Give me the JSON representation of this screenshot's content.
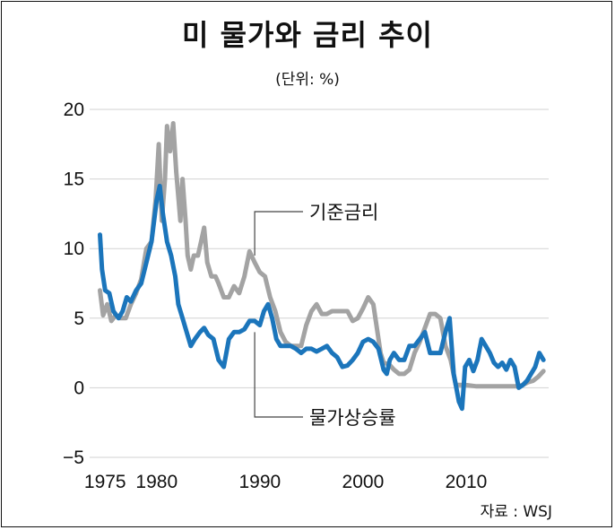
{
  "chart_data": {
    "type": "line",
    "title": "미 물가와 금리 추이",
    "subtitle": "(단위: %)",
    "source": "자료 : WSJ",
    "xlabel": "",
    "ylabel": "",
    "xlim": [
      1973.5,
      2018
    ],
    "ylim": [
      -5,
      20
    ],
    "x_ticks": [
      "1975",
      "1980",
      "1990",
      "2000",
      "2010"
    ],
    "y_ticks": [
      "20",
      "15",
      "10",
      "5",
      "0",
      "−5"
    ],
    "grid": true,
    "series": [
      {
        "name": "기준금리",
        "color": "#a3a3a3",
        "points": [
          [
            1974.5,
            7.0
          ],
          [
            1974.8,
            5.2
          ],
          [
            1975.2,
            6.0
          ],
          [
            1975.6,
            4.8
          ],
          [
            1976.0,
            5.2
          ],
          [
            1976.5,
            5.0
          ],
          [
            1977.0,
            5.0
          ],
          [
            1977.5,
            6.0
          ],
          [
            1978.0,
            6.8
          ],
          [
            1978.5,
            7.8
          ],
          [
            1979.0,
            10.0
          ],
          [
            1979.5,
            10.5
          ],
          [
            1979.9,
            13.5
          ],
          [
            1980.2,
            17.5
          ],
          [
            1980.5,
            12.0
          ],
          [
            1980.8,
            15.0
          ],
          [
            1981.0,
            18.8
          ],
          [
            1981.3,
            17.0
          ],
          [
            1981.6,
            19.0
          ],
          [
            1981.9,
            15.5
          ],
          [
            1982.3,
            12.0
          ],
          [
            1982.5,
            15.0
          ],
          [
            1982.8,
            12.0
          ],
          [
            1983.0,
            9.5
          ],
          [
            1983.3,
            8.5
          ],
          [
            1983.6,
            9.5
          ],
          [
            1984.0,
            9.5
          ],
          [
            1984.3,
            10.5
          ],
          [
            1984.6,
            11.5
          ],
          [
            1984.9,
            9.0
          ],
          [
            1985.3,
            8.0
          ],
          [
            1985.7,
            8.0
          ],
          [
            1986.0,
            7.5
          ],
          [
            1986.5,
            6.5
          ],
          [
            1987.0,
            6.5
          ],
          [
            1987.5,
            7.3
          ],
          [
            1988.0,
            6.8
          ],
          [
            1988.5,
            8.0
          ],
          [
            1989.0,
            9.8
          ],
          [
            1989.5,
            9.0
          ],
          [
            1990.0,
            8.3
          ],
          [
            1990.5,
            8.0
          ],
          [
            1991.0,
            6.5
          ],
          [
            1991.5,
            5.5
          ],
          [
            1992.0,
            4.0
          ],
          [
            1992.5,
            3.3
          ],
          [
            1993.0,
            3.0
          ],
          [
            1993.5,
            3.0
          ],
          [
            1994.0,
            3.0
          ],
          [
            1994.5,
            4.5
          ],
          [
            1995.0,
            5.5
          ],
          [
            1995.5,
            6.0
          ],
          [
            1996.0,
            5.3
          ],
          [
            1996.5,
            5.3
          ],
          [
            1997.0,
            5.5
          ],
          [
            1997.5,
            5.5
          ],
          [
            1998.0,
            5.5
          ],
          [
            1998.5,
            5.5
          ],
          [
            1999.0,
            4.8
          ],
          [
            1999.5,
            5.0
          ],
          [
            2000.0,
            5.7
          ],
          [
            2000.5,
            6.5
          ],
          [
            2001.0,
            6.0
          ],
          [
            2001.3,
            4.5
          ],
          [
            2001.7,
            2.5
          ],
          [
            2002.0,
            1.8
          ],
          [
            2002.5,
            1.7
          ],
          [
            2003.0,
            1.3
          ],
          [
            2003.5,
            1.0
          ],
          [
            2004.0,
            1.0
          ],
          [
            2004.5,
            1.3
          ],
          [
            2005.0,
            2.5
          ],
          [
            2005.5,
            3.3
          ],
          [
            2006.0,
            4.3
          ],
          [
            2006.5,
            5.3
          ],
          [
            2007.0,
            5.3
          ],
          [
            2007.5,
            5.0
          ],
          [
            2008.0,
            3.0
          ],
          [
            2008.5,
            2.0
          ],
          [
            2009.0,
            0.2
          ],
          [
            2010.0,
            0.2
          ],
          [
            2011.0,
            0.1
          ],
          [
            2012.0,
            0.1
          ],
          [
            2013.0,
            0.1
          ],
          [
            2014.0,
            0.1
          ],
          [
            2015.0,
            0.1
          ],
          [
            2015.5,
            0.2
          ],
          [
            2016.0,
            0.4
          ],
          [
            2016.5,
            0.5
          ],
          [
            2017.0,
            0.8
          ],
          [
            2017.5,
            1.2
          ]
        ]
      },
      {
        "name": "물가상승률",
        "color": "#1b75bb",
        "points": [
          [
            1974.5,
            11.0
          ],
          [
            1974.7,
            8.5
          ],
          [
            1975.0,
            7.0
          ],
          [
            1975.4,
            6.8
          ],
          [
            1975.8,
            5.5
          ],
          [
            1976.3,
            5.0
          ],
          [
            1976.7,
            5.5
          ],
          [
            1977.1,
            6.5
          ],
          [
            1977.5,
            6.2
          ],
          [
            1978.0,
            7.0
          ],
          [
            1978.5,
            7.5
          ],
          [
            1979.0,
            9.0
          ],
          [
            1979.5,
            10.5
          ],
          [
            1980.0,
            13.5
          ],
          [
            1980.3,
            14.5
          ],
          [
            1980.6,
            12.5
          ],
          [
            1981.0,
            10.5
          ],
          [
            1981.4,
            9.5
          ],
          [
            1981.8,
            8.0
          ],
          [
            1982.1,
            6.0
          ],
          [
            1982.5,
            5.0
          ],
          [
            1982.9,
            4.0
          ],
          [
            1983.3,
            3.0
          ],
          [
            1983.7,
            3.5
          ],
          [
            1984.2,
            4.0
          ],
          [
            1984.6,
            4.3
          ],
          [
            1985.0,
            3.8
          ],
          [
            1985.5,
            3.5
          ],
          [
            1986.0,
            2.0
          ],
          [
            1986.5,
            1.5
          ],
          [
            1987.0,
            3.5
          ],
          [
            1987.5,
            4.0
          ],
          [
            1988.0,
            4.0
          ],
          [
            1988.5,
            4.2
          ],
          [
            1989.0,
            4.8
          ],
          [
            1989.5,
            4.8
          ],
          [
            1990.0,
            4.5
          ],
          [
            1990.4,
            5.5
          ],
          [
            1990.8,
            6.0
          ],
          [
            1991.2,
            5.0
          ],
          [
            1991.6,
            3.5
          ],
          [
            1992.0,
            3.0
          ],
          [
            1992.5,
            3.0
          ],
          [
            1993.0,
            3.0
          ],
          [
            1993.5,
            2.8
          ],
          [
            1994.0,
            2.5
          ],
          [
            1994.5,
            2.8
          ],
          [
            1995.0,
            2.8
          ],
          [
            1995.5,
            2.6
          ],
          [
            1996.0,
            2.8
          ],
          [
            1996.5,
            3.0
          ],
          [
            1997.0,
            2.5
          ],
          [
            1997.5,
            2.2
          ],
          [
            1998.0,
            1.5
          ],
          [
            1998.5,
            1.6
          ],
          [
            1999.0,
            2.0
          ],
          [
            1999.5,
            2.5
          ],
          [
            2000.0,
            3.3
          ],
          [
            2000.5,
            3.5
          ],
          [
            2001.0,
            3.3
          ],
          [
            2001.5,
            2.8
          ],
          [
            2002.0,
            1.3
          ],
          [
            2002.3,
            1.0
          ],
          [
            2002.6,
            2.0
          ],
          [
            2003.0,
            2.5
          ],
          [
            2003.5,
            2.0
          ],
          [
            2004.0,
            2.0
          ],
          [
            2004.5,
            3.0
          ],
          [
            2005.0,
            3.0
          ],
          [
            2005.5,
            3.5
          ],
          [
            2006.0,
            4.0
          ],
          [
            2006.5,
            2.5
          ],
          [
            2007.0,
            2.5
          ],
          [
            2007.5,
            2.5
          ],
          [
            2008.0,
            4.0
          ],
          [
            2008.4,
            5.0
          ],
          [
            2008.8,
            1.0
          ],
          [
            2009.3,
            -1.0
          ],
          [
            2009.6,
            -1.5
          ],
          [
            2009.9,
            1.5
          ],
          [
            2010.3,
            2.0
          ],
          [
            2010.7,
            1.2
          ],
          [
            2011.1,
            2.0
          ],
          [
            2011.5,
            3.5
          ],
          [
            2011.9,
            3.0
          ],
          [
            2012.3,
            2.5
          ],
          [
            2012.7,
            1.8
          ],
          [
            2013.1,
            1.5
          ],
          [
            2013.5,
            1.8
          ],
          [
            2013.9,
            1.3
          ],
          [
            2014.3,
            2.0
          ],
          [
            2014.7,
            1.5
          ],
          [
            2015.1,
            0.0
          ],
          [
            2015.5,
            0.2
          ],
          [
            2015.9,
            0.5
          ],
          [
            2016.3,
            1.0
          ],
          [
            2016.7,
            1.5
          ],
          [
            2017.1,
            2.5
          ],
          [
            2017.5,
            2.0
          ]
        ]
      }
    ],
    "annotations": [
      {
        "text": "기준금리",
        "series": "기준금리"
      },
      {
        "text": "물가상승률",
        "series": "물가상승률"
      }
    ]
  }
}
